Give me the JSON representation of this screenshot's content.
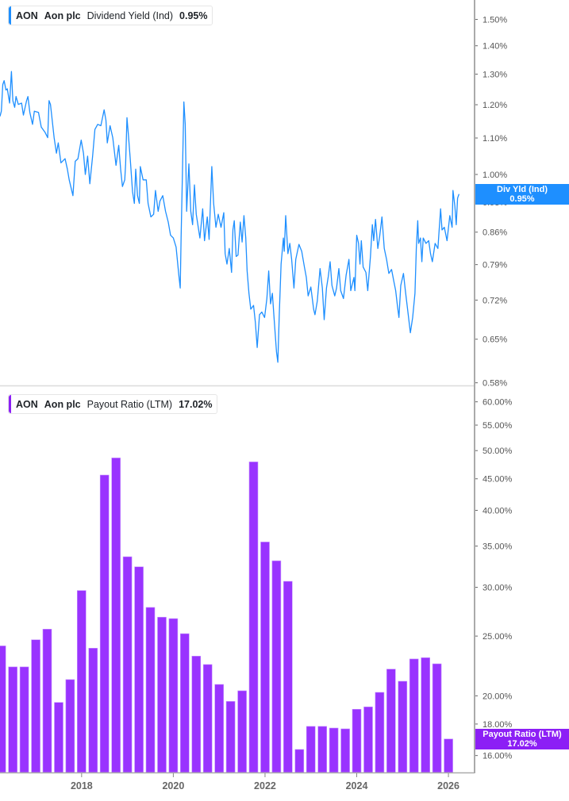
{
  "panels": {
    "top": {
      "legend": {
        "ticker": "AON",
        "company": "Aon plc",
        "metric": "Dividend Yield (Ind)",
        "value": "0.95%"
      },
      "flag": {
        "label": "Div Yld (Ind)",
        "value": "0.95%"
      },
      "color": "#1e8fff"
    },
    "bottom": {
      "legend": {
        "ticker": "AON",
        "company": "Aon plc",
        "metric": "Payout Ratio (LTM)",
        "value": "17.02%"
      },
      "flag": {
        "label": "Payout Ratio (LTM)",
        "value": "17.02%"
      },
      "color": "#8c1ff5"
    }
  },
  "x_axis": {
    "ticks": [
      2018,
      2020,
      2022,
      2024,
      2026
    ],
    "labels": [
      "2018",
      "2020",
      "2022",
      "2024",
      "2026"
    ],
    "xlim": [
      2016.22,
      2026.57
    ]
  },
  "chart_data": [
    {
      "type": "line",
      "title": "AON Aon plc Dividend Yield (Ind)",
      "series_name": "Dividend Yield (Ind)",
      "color": "#1e8fff",
      "yscale": "log",
      "ylim": [
        0.576,
        1.578
      ],
      "yticks": [
        0.58,
        0.65,
        0.72,
        0.79,
        0.86,
        0.93,
        1.0,
        1.1,
        1.2,
        1.3,
        1.4,
        1.5
      ],
      "ytick_labels": [
        "0.58%",
        "0.65%",
        "0.72%",
        "0.79%",
        "0.86%",
        "0.93%",
        "1.00%",
        "1.10%",
        "1.20%",
        "1.30%",
        "1.40%",
        "1.50%"
      ],
      "last_value": 0.95,
      "x": [
        2016.22,
        2016.25,
        2016.28,
        2016.31,
        2016.35,
        2016.38,
        2016.43,
        2016.47,
        2016.5,
        2016.54,
        2016.57,
        2016.62,
        2016.69,
        2016.73,
        2016.8,
        2016.83,
        2016.87,
        2016.93,
        2016.97,
        2017.06,
        2017.12,
        2017.2,
        2017.26,
        2017.29,
        2017.32,
        2017.4,
        2017.45,
        2017.49,
        2017.55,
        2017.64,
        2017.69,
        2017.73,
        2017.81,
        2017.86,
        2017.92,
        2017.99,
        2018.04,
        2018.08,
        2018.13,
        2018.18,
        2018.24,
        2018.29,
        2018.35,
        2018.42,
        2018.49,
        2018.53,
        2018.56,
        2018.62,
        2018.68,
        2018.75,
        2018.81,
        2018.85,
        2018.89,
        2018.94,
        2018.96,
        2018.99,
        2019.02,
        2019.06,
        2019.11,
        2019.15,
        2019.18,
        2019.22,
        2019.26,
        2019.28,
        2019.34,
        2019.41,
        2019.45,
        2019.51,
        2019.57,
        2019.61,
        2019.67,
        2019.71,
        2019.77,
        2019.83,
        2019.89,
        2019.94,
        2020.0,
        2020.06,
        2020.12,
        2020.15,
        2020.17,
        2020.2,
        2020.23,
        2020.26,
        2020.29,
        2020.34,
        2020.38,
        2020.42,
        2020.46,
        2020.5,
        2020.58,
        2020.64,
        2020.68,
        2020.74,
        2020.78,
        2020.84,
        2020.88,
        2020.93,
        2020.98,
        2021.04,
        2021.1,
        2021.13,
        2021.17,
        2021.22,
        2021.27,
        2021.3,
        2021.33,
        2021.37,
        2021.41,
        2021.46,
        2021.5,
        2021.54,
        2021.58,
        2021.61,
        2021.65,
        2021.69,
        2021.75,
        2021.79,
        2021.83,
        2021.88,
        2021.93,
        2021.99,
        2022.04,
        2022.08,
        2022.12,
        2022.16,
        2022.2,
        2022.25,
        2022.28,
        2022.31,
        2022.35,
        2022.4,
        2022.42,
        2022.45,
        2022.5,
        2022.54,
        2022.58,
        2022.63,
        2022.67,
        2022.74,
        2022.8,
        2022.86,
        2022.9,
        2022.94,
        2023.0,
        2023.06,
        2023.09,
        2023.14,
        2023.2,
        2023.25,
        2023.29,
        2023.34,
        2023.38,
        2023.42,
        2023.46,
        2023.52,
        2023.56,
        2023.61,
        2023.65,
        2023.71,
        2023.77,
        2023.83,
        2023.87,
        2023.94,
        2023.96,
        2024.0,
        2024.04,
        2024.07,
        2024.1,
        2024.14,
        2024.2,
        2024.24,
        2024.3,
        2024.34,
        2024.37,
        2024.41,
        2024.46,
        2024.5,
        2024.55,
        2024.6,
        2024.65,
        2024.7,
        2024.76,
        2024.81,
        2024.85,
        2024.89,
        2024.92,
        2024.96,
        2025.02,
        2025.06,
        2025.11,
        2025.17,
        2025.22,
        2025.27,
        2025.3,
        2025.33,
        2025.35,
        2025.39,
        2025.42,
        2025.45,
        2025.51,
        2025.57,
        2025.61,
        2025.65,
        2025.71,
        2025.77,
        2025.83,
        2025.86,
        2025.91,
        2025.97,
        2026.03,
        2026.08,
        2026.1,
        2026.14,
        2026.17,
        2026.2,
        2026.23
      ],
      "values": [
        1.164,
        1.18,
        1.265,
        1.278,
        1.247,
        1.251,
        1.205,
        1.309,
        1.213,
        1.192,
        1.226,
        1.201,
        1.205,
        1.168,
        1.213,
        1.226,
        1.176,
        1.14,
        1.18,
        1.176,
        1.132,
        1.117,
        1.101,
        1.213,
        1.201,
        1.101,
        1.057,
        1.086,
        1.031,
        1.042,
        1.014,
        0.986,
        0.946,
        1.035,
        1.042,
        1.094,
        1.057,
        1.0,
        1.049,
        0.976,
        1.049,
        1.125,
        1.14,
        1.136,
        1.184,
        1.152,
        1.086,
        1.136,
        1.101,
        1.024,
        1.079,
        1.014,
        0.969,
        0.986,
        1.028,
        1.16,
        1.109,
        1.042,
        0.956,
        0.927,
        1.014,
        0.946,
        0.927,
        1.021,
        0.986,
        0.986,
        0.927,
        0.895,
        0.901,
        0.959,
        0.908,
        0.933,
        0.946,
        0.908,
        0.883,
        0.853,
        0.847,
        0.827,
        0.769,
        0.743,
        0.847,
        1.014,
        1.209,
        1.14,
        0.908,
        1.028,
        0.908,
        0.877,
        0.973,
        0.901,
        0.847,
        0.914,
        0.841,
        0.895,
        0.844,
        1.021,
        0.927,
        0.871,
        0.901,
        0.871,
        0.905,
        0.813,
        0.791,
        0.824,
        0.774,
        0.865,
        0.886,
        0.807,
        0.81,
        0.883,
        0.838,
        0.898,
        0.847,
        0.777,
        0.733,
        0.703,
        0.71,
        0.679,
        0.636,
        0.693,
        0.698,
        0.688,
        0.723,
        0.777,
        0.713,
        0.733,
        0.684,
        0.629,
        0.612,
        0.693,
        0.791,
        0.847,
        0.818,
        0.898,
        0.813,
        0.835,
        0.801,
        0.743,
        0.801,
        0.833,
        0.818,
        0.785,
        0.764,
        0.728,
        0.745,
        0.703,
        0.693,
        0.718,
        0.782,
        0.743,
        0.684,
        0.743,
        0.766,
        0.796,
        0.748,
        0.728,
        0.743,
        0.782,
        0.738,
        0.723,
        0.769,
        0.801,
        0.738,
        0.764,
        0.738,
        0.853,
        0.835,
        0.791,
        0.841,
        0.785,
        0.774,
        0.738,
        0.807,
        0.877,
        0.841,
        0.889,
        0.824,
        0.85,
        0.895,
        0.824,
        0.801,
        0.772,
        0.78,
        0.756,
        0.738,
        0.708,
        0.688,
        0.748,
        0.772,
        0.738,
        0.703,
        0.661,
        0.688,
        0.733,
        0.824,
        0.886,
        0.835,
        0.847,
        0.796,
        0.847,
        0.835,
        0.841,
        0.813,
        0.796,
        0.835,
        0.824,
        0.914,
        0.865,
        0.871,
        0.841,
        0.898,
        0.871,
        0.959,
        0.92,
        0.877,
        0.94,
        0.95
      ],
      "xlabel": "",
      "ylabel": "",
      "grid": false,
      "legend_position": "top-left"
    },
    {
      "type": "bar",
      "title": "AON Aon plc Payout Ratio (LTM)",
      "series_name": "Payout Ratio (LTM)",
      "color": "#9933ff",
      "yscale": "log",
      "ylim": [
        15.02,
        63.6
      ],
      "yticks": [
        16,
        18,
        20,
        25,
        30,
        35,
        40,
        45,
        50,
        55,
        60
      ],
      "ytick_labels": [
        "16.00%",
        "18.00%",
        "20.00%",
        "25.00%",
        "30.00%",
        "35.00%",
        "40.00%",
        "45.00%",
        "50.00%",
        "55.00%",
        "60.00%"
      ],
      "last_value": 17.02,
      "x": [
        2016.25,
        2016.5,
        2016.75,
        2017.0,
        2017.25,
        2017.5,
        2017.75,
        2018.0,
        2018.25,
        2018.5,
        2018.75,
        2019.0,
        2019.25,
        2019.5,
        2019.75,
        2020.0,
        2020.25,
        2020.5,
        2020.75,
        2021.0,
        2021.25,
        2021.5,
        2021.75,
        2022.0,
        2022.25,
        2022.5,
        2022.75,
        2023.0,
        2023.25,
        2023.5,
        2023.75,
        2024.0,
        2024.25,
        2024.5,
        2024.75,
        2025.0,
        2025.25,
        2025.5,
        2025.75,
        2026.0
      ],
      "values": [
        24.1,
        22.28,
        22.28,
        24.66,
        25.66,
        19.51,
        21.25,
        29.64,
        23.9,
        45.63,
        48.66,
        33.63,
        32.39,
        27.83,
        26.83,
        26.69,
        25.23,
        23.2,
        22.48,
        20.87,
        19.59,
        20.38,
        47.94,
        35.54,
        33.13,
        30.68,
        16.37,
        17.84,
        17.84,
        17.73,
        17.68,
        19.02,
        19.19,
        20.26,
        22.1,
        21.12,
        22.95,
        23.06,
        22.54,
        17.02
      ],
      "xlabel": "",
      "ylabel": "",
      "grid": false,
      "legend_position": "top-left"
    }
  ]
}
